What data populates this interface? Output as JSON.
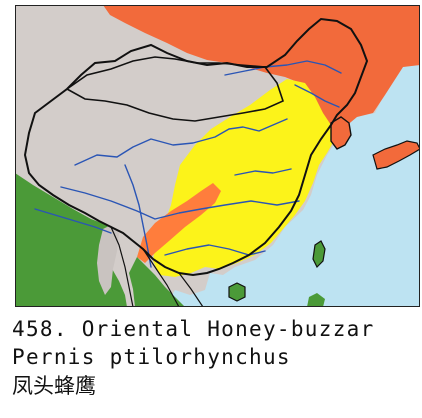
{
  "map": {
    "region": "China and East Asia",
    "colors": {
      "sea": "#bde3f2",
      "land_absent": "#d3cdca",
      "range_breeding": "#f26a3b",
      "range_resident": "#ff7d3c",
      "range_migration": "#fcf31a",
      "range_winter": "#4b9a38",
      "borders": "#111111",
      "rivers": "#2a55b5"
    }
  },
  "caption": {
    "title": "458. Oriental Honey-buzzar",
    "scientific_name": "Pernis ptilorhynchus",
    "chinese_name": "凤头蜂鹰"
  }
}
